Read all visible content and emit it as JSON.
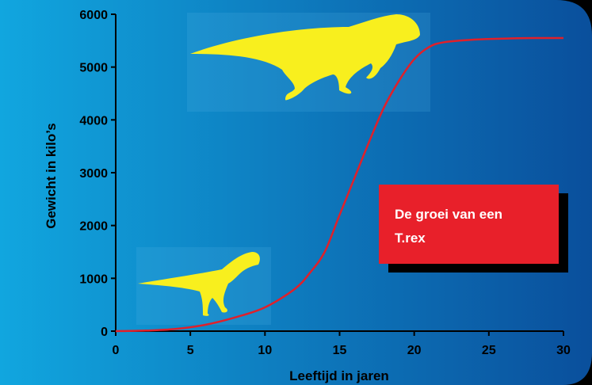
{
  "chart_data": {
    "type": "line",
    "title": "",
    "xlabel": "Leeftijd in jaren",
    "ylabel": "Gewicht in kilo’s",
    "xlim": [
      0,
      30
    ],
    "ylim": [
      0,
      6000
    ],
    "xticks": [
      0,
      5,
      10,
      15,
      20,
      25,
      30
    ],
    "yticks": [
      0,
      1000,
      2000,
      3000,
      4000,
      5000,
      6000
    ],
    "grid": false,
    "series": [
      {
        "color": "#e0202a",
        "x": [
          0,
          2,
          4,
          6,
          8,
          10,
          12,
          13,
          14,
          15,
          16,
          17,
          18,
          19,
          20,
          21,
          22,
          24,
          26,
          28,
          30
        ],
        "y": [
          0,
          10,
          40,
          120,
          260,
          450,
          800,
          1100,
          1500,
          2200,
          2900,
          3600,
          4250,
          4750,
          5150,
          5380,
          5470,
          5520,
          5540,
          5550,
          5550
        ]
      }
    ],
    "annotation": {
      "lines": [
        "De groei van een",
        "T.rex"
      ],
      "bg_color": "#e8202a",
      "shadow_color": "#000000"
    },
    "colors": {
      "bg_light": "#11a6df",
      "bg_dark": "#0a4f9c",
      "frame": "#000000",
      "dino": "#f8ef1e"
    },
    "icons": [
      "adult-trex-silhouette",
      "juvenile-trex-silhouette"
    ]
  }
}
